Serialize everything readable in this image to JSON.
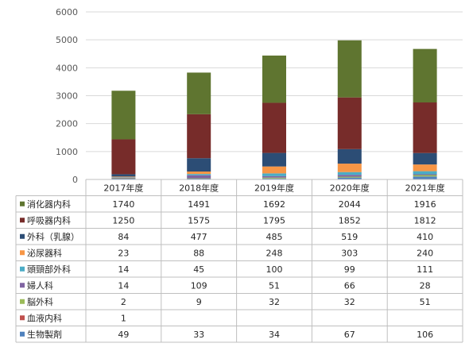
{
  "chart_data": {
    "type": "bar",
    "stacked": true,
    "categories": [
      "2017年度",
      "2018年度",
      "2019年度",
      "2020年度",
      "2021年度"
    ],
    "ylim": [
      0,
      6000
    ],
    "yticks": [
      0,
      1000,
      2000,
      3000,
      4000,
      5000,
      6000
    ],
    "grid": true,
    "legend": "data-table-left",
    "series": [
      {
        "name": "生物製剤",
        "color": "#4f81bd",
        "values": [
          49,
          33,
          34,
          67,
          106
        ]
      },
      {
        "name": "血液内科",
        "color": "#c0504d",
        "values": [
          1,
          null,
          null,
          null,
          null
        ]
      },
      {
        "name": "脳外科",
        "color": "#9bbb59",
        "values": [
          2,
          9,
          32,
          32,
          51
        ]
      },
      {
        "name": "婦人科",
        "color": "#8064a2",
        "values": [
          14,
          109,
          51,
          66,
          28
        ]
      },
      {
        "name": "頭頸部外科",
        "color": "#4bacc6",
        "values": [
          14,
          45,
          100,
          99,
          111
        ]
      },
      {
        "name": "泌尿器科",
        "color": "#f79646",
        "values": [
          23,
          88,
          248,
          303,
          240
        ]
      },
      {
        "name": "外科（乳腺）",
        "color": "#2c4d75",
        "values": [
          84,
          477,
          485,
          519,
          410
        ]
      },
      {
        "name": "呼吸器内科",
        "color": "#772c2a",
        "values": [
          1250,
          1575,
          1795,
          1852,
          1812
        ]
      },
      {
        "name": "消化器内科",
        "color": "#5f7530",
        "values": [
          1740,
          1491,
          1692,
          2044,
          1916
        ]
      }
    ],
    "table_rows": [
      {
        "name": "消化器内科",
        "color": "#5f7530",
        "values": [
          "1740",
          "1491",
          "1692",
          "2044",
          "1916"
        ]
      },
      {
        "name": "呼吸器内科",
        "color": "#772c2a",
        "values": [
          "1250",
          "1575",
          "1795",
          "1852",
          "1812"
        ]
      },
      {
        "name": "外科（乳腺）",
        "color": "#2c4d75",
        "values": [
          "84",
          "477",
          "485",
          "519",
          "410"
        ]
      },
      {
        "name": "泌尿器科",
        "color": "#f79646",
        "values": [
          "23",
          "88",
          "248",
          "303",
          "240"
        ]
      },
      {
        "name": "頭頸部外科",
        "color": "#4bacc6",
        "values": [
          "14",
          "45",
          "100",
          "99",
          "111"
        ]
      },
      {
        "name": "婦人科",
        "color": "#8064a2",
        "values": [
          "14",
          "109",
          "51",
          "66",
          "28"
        ]
      },
      {
        "name": "脳外科",
        "color": "#9bbb59",
        "values": [
          "2",
          "9",
          "32",
          "32",
          "51"
        ]
      },
      {
        "name": "血液内科",
        "color": "#c0504d",
        "values": [
          "1",
          "",
          "",
          "",
          ""
        ]
      },
      {
        "name": "生物製剤",
        "color": "#4f81bd",
        "values": [
          "49",
          "33",
          "34",
          "67",
          "106"
        ]
      }
    ]
  }
}
